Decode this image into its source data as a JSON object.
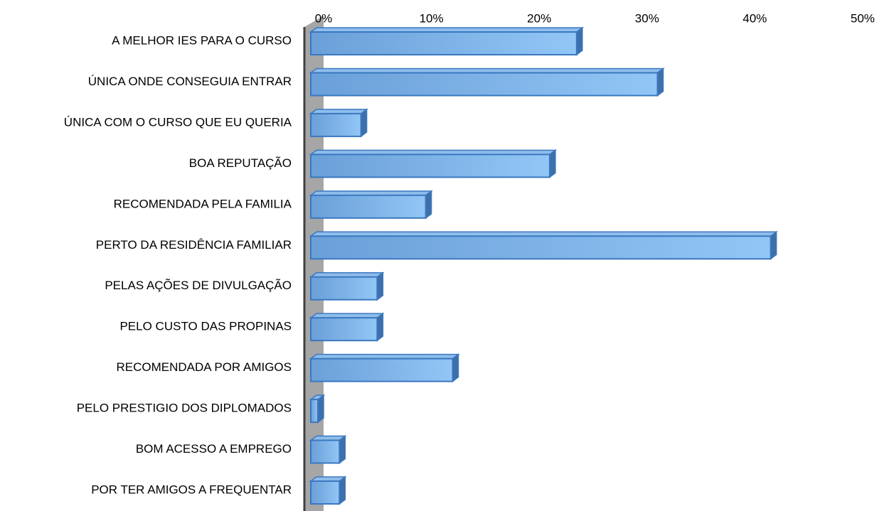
{
  "chart_data": {
    "type": "bar",
    "orientation": "horizontal",
    "three_d": true,
    "categories": [
      "A MELHOR IES PARA O CURSO",
      "ÚNICA ONDE CONSEGUIA ENTRAR",
      "ÚNICA COM O CURSO QUE EU QUERIA",
      "BOA REPUTAÇÃO",
      "RECOMENDADA PELA FAMILIA",
      "PERTO DA RESIDÊNCIA FAMILIAR",
      "PELAS AÇÕES DE DIVULGAÇÃO",
      "PELO CUSTO DAS PROPINAS",
      "RECOMENDADA POR AMIGOS",
      "PELO PRESTIGIO DOS DIPLOMADOS",
      "BOM ACESSO A EMPREGO",
      "POR TER AMIGOS A FREQUENTAR"
    ],
    "values": [
      24,
      31.5,
      4,
      21.5,
      10,
      42,
      5.5,
      5.5,
      12.5,
      0,
      2,
      2
    ],
    "color": "#6fa3dc",
    "xlim": [
      0,
      50
    ],
    "xticks": [
      {
        "value": 0,
        "label": "0%"
      },
      {
        "value": 10,
        "label": "10%"
      },
      {
        "value": 20,
        "label": "20%"
      },
      {
        "value": 30,
        "label": "30%"
      },
      {
        "value": 40,
        "label": "40%"
      },
      {
        "value": 50,
        "label": "50%"
      }
    ],
    "grid": false
  }
}
